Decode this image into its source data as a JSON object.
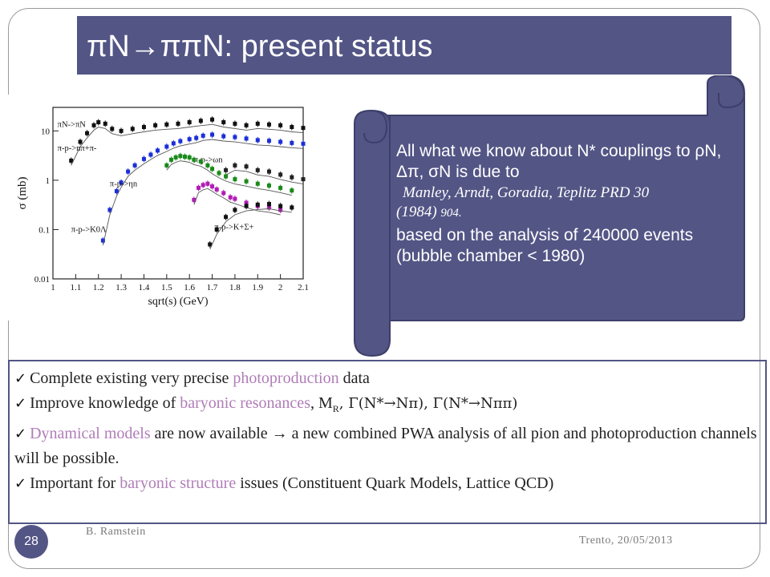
{
  "slide": {
    "title": "πN→ππN: present status",
    "number": "28",
    "author": "B. Ramstein",
    "footer_date": "Trento, 20/05/2013"
  },
  "scroll_box": {
    "line1": "All what we know about N* couplings to ρN, Δπ, σN is due to",
    "reference_authors": "Manley, Arndt, Goradia, Teplitz PRD 30",
    "reference_year": "(1984)",
    "reference_page": "904.",
    "line2": "based on the analysis of 240000 events (bubble chamber < 1980)"
  },
  "points": [
    {
      "pre": "Complete existing very precise ",
      "hl": "photoproduction",
      "post": " data"
    },
    {
      "pre": "Improve knowledge of ",
      "hl": "baryonic resonances",
      "post": ", M",
      "sub": "R",
      "tail1": ", Γ(N*→Nπ),  Γ(N*→Nππ)"
    },
    {
      "pre": "",
      "hl": "Dynamical models",
      "post": " are now available →  a new combined PWA analysis of all pion and photoproduction channels will be possible."
    },
    {
      "pre": "Important for ",
      "hl": "baryonic structure",
      "post": " issues (Constituent Quark Models, Lattice QCD)"
    }
  ],
  "chart_data": {
    "type": "scatter",
    "xlabel": "sqrt(s) (GeV)",
    "ylabel": "σ (mb)",
    "xlim": [
      1.0,
      2.1
    ],
    "ylim": [
      0.01,
      30
    ],
    "yscale": "log",
    "x_ticks": [
      "1",
      "1.1",
      "1.2",
      "1.3",
      "1.4",
      "1.5",
      "1.6",
      "1.7",
      "1.8",
      "1.9",
      "2",
      "2.1"
    ],
    "y_ticks": [
      "0.01",
      "0.1",
      "1",
      "10"
    ],
    "series": [
      {
        "name": "πN->πN",
        "color": "#111111",
        "x": [
          1.08,
          1.12,
          1.15,
          1.18,
          1.2,
          1.23,
          1.26,
          1.3,
          1.35,
          1.4,
          1.45,
          1.5,
          1.55,
          1.6,
          1.65,
          1.7,
          1.75,
          1.8,
          1.85,
          1.9,
          1.95,
          2.0,
          2.05,
          2.1
        ],
        "y": [
          2.5,
          6,
          9,
          13,
          15,
          14,
          11,
          10,
          11,
          12,
          13,
          13.5,
          14,
          15,
          16,
          17,
          15,
          14,
          13,
          14,
          13.5,
          13,
          12,
          11.5
        ]
      },
      {
        "name": "π-p->nπ+π-",
        "color": "#1b2fd8",
        "x": [
          1.22,
          1.25,
          1.28,
          1.3,
          1.33,
          1.36,
          1.4,
          1.43,
          1.46,
          1.5,
          1.53,
          1.56,
          1.6,
          1.63,
          1.66,
          1.7,
          1.75,
          1.8,
          1.85,
          1.9,
          1.95,
          2.0,
          2.05,
          2.1
        ],
        "y": [
          0.06,
          0.25,
          0.6,
          0.9,
          1.5,
          2.0,
          2.7,
          3.3,
          4.0,
          4.8,
          5.6,
          6.2,
          6.8,
          7.2,
          8.0,
          8.4,
          7.8,
          7.5,
          7.0,
          6.5,
          6.3,
          6.0,
          5.7,
          5.5
        ]
      },
      {
        "name": "π-p->ωn",
        "color": "#222222",
        "x": [
          1.76,
          1.8,
          1.85,
          1.9,
          1.95,
          2.0,
          2.05,
          2.1
        ],
        "y": [
          1.6,
          2.0,
          1.9,
          1.6,
          1.5,
          1.3,
          1.15,
          1.05
        ]
      },
      {
        "name": "π-p->ηn",
        "color": "#1a8a1a",
        "x": [
          1.5,
          1.52,
          1.54,
          1.56,
          1.58,
          1.6,
          1.62,
          1.65,
          1.68,
          1.7,
          1.73,
          1.76,
          1.8,
          1.85,
          1.9,
          1.95,
          2.0,
          2.05
        ],
        "y": [
          2.0,
          2.6,
          2.9,
          3.1,
          3.0,
          2.9,
          2.6,
          2.4,
          2.0,
          1.7,
          1.4,
          1.2,
          1.05,
          0.95,
          0.85,
          0.78,
          0.7,
          0.62
        ]
      },
      {
        "name": "π-p->K0Λ",
        "color": "#b21bb6",
        "x": [
          1.62,
          1.64,
          1.66,
          1.68,
          1.7,
          1.72,
          1.75,
          1.78,
          1.8,
          1.85,
          1.9,
          1.95,
          2.0
        ],
        "y": [
          0.4,
          0.7,
          0.8,
          0.85,
          0.75,
          0.65,
          0.55,
          0.45,
          0.42,
          0.35,
          0.3,
          0.28,
          0.25
        ]
      },
      {
        "name": "π-p->K+Σ+",
        "color": "#111111",
        "x": [
          1.69,
          1.72,
          1.76,
          1.8,
          1.85,
          1.9,
          1.95,
          2.0,
          2.05
        ],
        "y": [
          0.05,
          0.1,
          0.18,
          0.25,
          0.3,
          0.32,
          0.33,
          0.3,
          0.28
        ]
      }
    ]
  }
}
